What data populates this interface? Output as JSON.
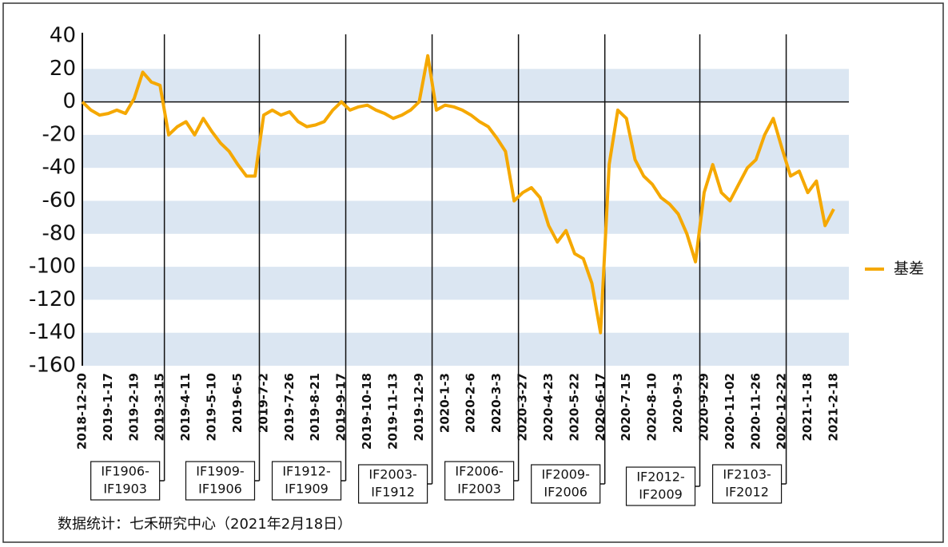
{
  "chart_data": {
    "type": "line",
    "categories": [
      "2018-12-20",
      null,
      null,
      "2019-1-17",
      null,
      null,
      "2019-2-19",
      null,
      null,
      "2019-3-15",
      null,
      null,
      "2019-4-11",
      null,
      null,
      "2019-5-10",
      null,
      null,
      "2019-6-5",
      null,
      null,
      "2019-7-2",
      null,
      null,
      "2019-7-26",
      null,
      null,
      "2019-8-21",
      null,
      null,
      "2019-9-17",
      null,
      null,
      "2019-10-18",
      null,
      null,
      "2019-11-13",
      null,
      null,
      "2019-12-9",
      null,
      null,
      "2020-1-3",
      null,
      null,
      "2020-2-6",
      null,
      null,
      "2020-3-3",
      null,
      null,
      "2020-3-27",
      null,
      null,
      "2020-4-23",
      null,
      null,
      "2020-5-22",
      null,
      null,
      "2020-6-17",
      null,
      null,
      "2020-7-15",
      null,
      null,
      "2020-8-10",
      null,
      null,
      "2020-9-3",
      null,
      null,
      "2020-9-29",
      null,
      null,
      "2020-11-02",
      null,
      null,
      "2020-11-26",
      null,
      null,
      "2020-12-22",
      null,
      null,
      "2021-1-18",
      null,
      null,
      "2021-2-18"
    ],
    "series": [
      {
        "name": "基差",
        "color": "#f5a800",
        "values": [
          0,
          -5,
          -8,
          -7,
          -5,
          -7,
          2,
          18,
          12,
          10,
          -20,
          -15,
          -12,
          -20,
          -10,
          -18,
          -25,
          -30,
          -38,
          -45,
          -45,
          -8,
          -5,
          -8,
          -6,
          -12,
          -15,
          -14,
          -12,
          -5,
          0,
          -5,
          -3,
          -2,
          -5,
          -7,
          -10,
          -8,
          -5,
          0,
          28,
          -5,
          -2,
          -3,
          -5,
          -8,
          -12,
          -15,
          -22,
          -30,
          -60,
          -55,
          -52,
          -58,
          -75,
          -85,
          -78,
          -92,
          -95,
          -110,
          -140,
          -38,
          -5,
          -10,
          -35,
          -45,
          -50,
          -58,
          -62,
          -68,
          -80,
          -97,
          -55,
          -38,
          -55,
          -60,
          -50,
          -40,
          -35,
          -20,
          -10,
          -28,
          -45,
          -42,
          -55,
          -48,
          -75,
          -65
        ]
      }
    ],
    "ylim": [
      -160,
      40
    ],
    "yticks": [
      40,
      20,
      0,
      -20,
      -40,
      -60,
      -80,
      -100,
      -120,
      -140,
      -160
    ],
    "grid": "bands",
    "legend": "right",
    "annotations": [
      [
        "IF1906-",
        "IF1903"
      ],
      [
        "IF1909-",
        "IF1906"
      ],
      [
        "IF1912-",
        "IF1909"
      ],
      [
        "IF2003-",
        "IF1912"
      ],
      [
        "IF2006-",
        "IF2003"
      ],
      [
        "IF2009-",
        "IF2006"
      ],
      [
        "IF2012-",
        "IF2009"
      ],
      [
        "IF2103-",
        "IF2012"
      ]
    ],
    "source": "数据统计：七禾研究中心（2021年2月18日）"
  }
}
